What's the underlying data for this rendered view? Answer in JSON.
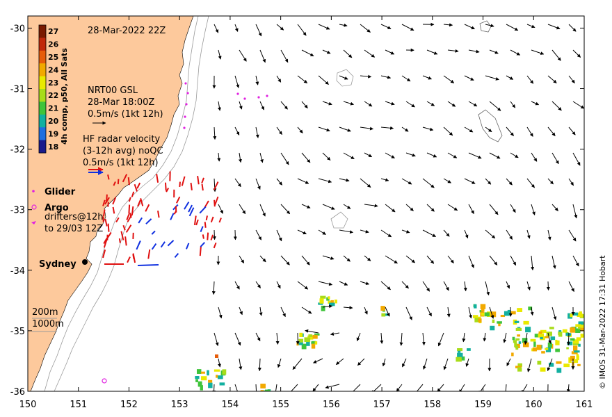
{
  "map": {
    "date_title": "28-Mar-2022 22Z",
    "x_ticks": [
      "150",
      "151",
      "152",
      "153",
      "154",
      "155",
      "156",
      "157",
      "158",
      "159",
      "160",
      "161"
    ],
    "y_ticks": [
      "-30",
      "-31",
      "-32",
      "-33",
      "-34",
      "-35",
      "-36"
    ],
    "lon_range": [
      150,
      161
    ],
    "lat_range": [
      -36,
      -29.8
    ],
    "land_color": "#fdc99c",
    "sea_color": "#ffffff",
    "isobath_color": "#9a9a9a"
  },
  "colorbar": {
    "title": "4h comp, p50, All Sats",
    "ticks": [
      "27",
      "26",
      "25",
      "24",
      "23",
      "22",
      "21",
      "20",
      "19",
      "18"
    ],
    "colors": [
      "#7a1a00",
      "#c0280a",
      "#e65c0a",
      "#f2a900",
      "#e9e900",
      "#a8dc1a",
      "#3fc43a",
      "#12b0a0",
      "#1e6fe0",
      "#1a1a8c"
    ]
  },
  "gsl_legend": {
    "line1": "NRT00 GSL",
    "line2": "28-Mar 18:00Z",
    "line3": "0.5m/s (1kt 12h)"
  },
  "radar_legend": {
    "line1": "HF radar velocity",
    "line2": "(3-12h avg) noQC",
    "line3": "0.5m/s (1kt 12h)"
  },
  "symbols_legend": {
    "glider": "Glider",
    "argo": "Argo",
    "drifters_line1": "drifters@12h",
    "drifters_line2": "to 29/03 12Z"
  },
  "place_label": "Sydney",
  "isobath_legend": {
    "shallow": "200m",
    "deep": "1000m"
  },
  "credit": "© IMOS 31-Mar-2022 17:31 Hobart",
  "marker_colors": {
    "glider": "#e020e0",
    "radar_red": "#e01010",
    "radar_blue": "#1030e0",
    "arrow": "#000000"
  }
}
